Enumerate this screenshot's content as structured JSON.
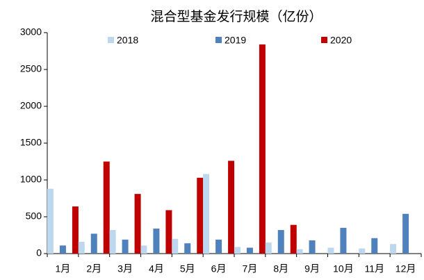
{
  "chart_data": {
    "type": "bar",
    "title": "混合型基金发行规模（亿份）",
    "categories": [
      "1月",
      "2月",
      "3月",
      "4月",
      "5月",
      "6月",
      "7月",
      "8月",
      "9月",
      "10月",
      "11月",
      "12月"
    ],
    "series": [
      {
        "name": "2018",
        "color": "#bdd7ee",
        "values": [
          880,
          160,
          320,
          110,
          200,
          1080,
          90,
          150,
          60,
          80,
          70,
          130
        ]
      },
      {
        "name": "2019",
        "color": "#4f81bd",
        "values": [
          110,
          270,
          190,
          340,
          140,
          190,
          80,
          320,
          180,
          350,
          210,
          540
        ]
      },
      {
        "name": "2020",
        "color": "#c00000",
        "values": [
          640,
          1250,
          810,
          590,
          1030,
          1260,
          2840,
          390,
          null,
          null,
          null,
          null
        ]
      }
    ],
    "ylim": [
      0,
      3000
    ],
    "yticks": [
      0,
      500,
      1000,
      1500,
      2000,
      2500,
      3000
    ],
    "grid": false
  }
}
